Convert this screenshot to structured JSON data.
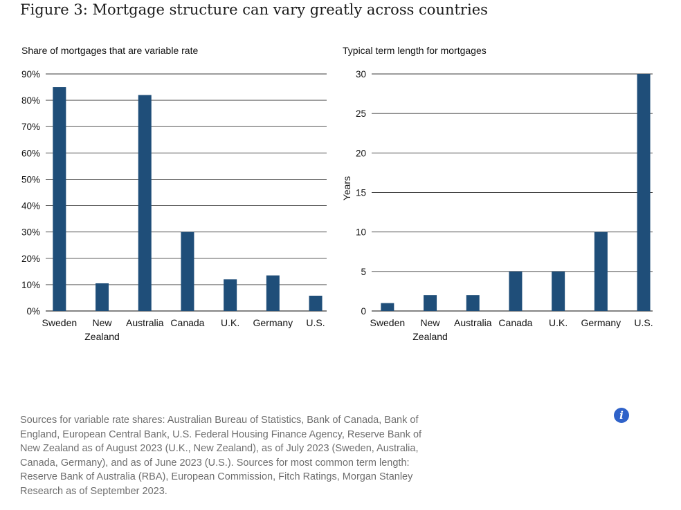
{
  "title": "Figure 3: Mortgage structure can vary greatly across countries",
  "chart_data": [
    {
      "type": "bar",
      "title": "Share of mortgages that are variable rate",
      "xlabel": "",
      "ylabel": "",
      "categories": [
        "Sweden",
        "New Zealand",
        "Australia",
        "Canada",
        "U.K.",
        "Germany",
        "U.S."
      ],
      "category_lines": [
        [
          "Sweden"
        ],
        [
          "New",
          "Zealand"
        ],
        [
          "Australia"
        ],
        [
          "Canada"
        ],
        [
          "U.K."
        ],
        [
          "Germany"
        ],
        [
          "U.S."
        ]
      ],
      "values": [
        85,
        10.5,
        82,
        30,
        12,
        13.5,
        5.8
      ],
      "ylim": [
        0,
        90
      ],
      "yticks": [
        0,
        10,
        20,
        30,
        40,
        50,
        60,
        70,
        80,
        90
      ],
      "ytick_labels": [
        "0%",
        "10%",
        "20%",
        "30%",
        "40%",
        "50%",
        "60%",
        "70%",
        "80%",
        "90%"
      ],
      "grid": true,
      "ytick_side": "left"
    },
    {
      "type": "bar",
      "title": "Typical term length for mortgages",
      "xlabel": "",
      "ylabel": "Years",
      "categories": [
        "Sweden",
        "New Zealand",
        "Australia",
        "Canada",
        "U.K.",
        "Germany",
        "U.S."
      ],
      "category_lines": [
        [
          "Sweden"
        ],
        [
          "New",
          "Zealand"
        ],
        [
          "Australia"
        ],
        [
          "Canada"
        ],
        [
          "U.K."
        ],
        [
          "Germany"
        ],
        [
          "U.S."
        ]
      ],
      "values": [
        1,
        2,
        2,
        5,
        5,
        10,
        30
      ],
      "ylim": [
        0,
        30
      ],
      "yticks": [
        0,
        5,
        10,
        15,
        20,
        25,
        30
      ],
      "ytick_labels": [
        "0",
        "5",
        "10",
        "15",
        "20",
        "25",
        "30"
      ],
      "grid": true,
      "ytick_side": "left"
    }
  ],
  "sources": "Sources for variable rate shares: Australian Bureau of Statistics, Bank of Canada, Bank of England, European Central Bank, U.S. Federal Housing Finance Agency, Reserve Bank of New Zealand as of August 2023 (U.K., New Zealand), as of July 2023 (Sweden, Australia, Canada, Germany), and as of June 2023 (U.S.). Sources for most common term length: Reserve Bank of Australia (RBA), European Commission, Fitch Ratings, Morgan Stanley Research as of September 2023.",
  "info_icon": {
    "glyph": "i",
    "icon": "info-icon"
  },
  "colors": {
    "bar": "#1f4e79",
    "grid": "#3a3a3a",
    "sources_text": "#6e6e6e",
    "info": "#2f62c9"
  }
}
